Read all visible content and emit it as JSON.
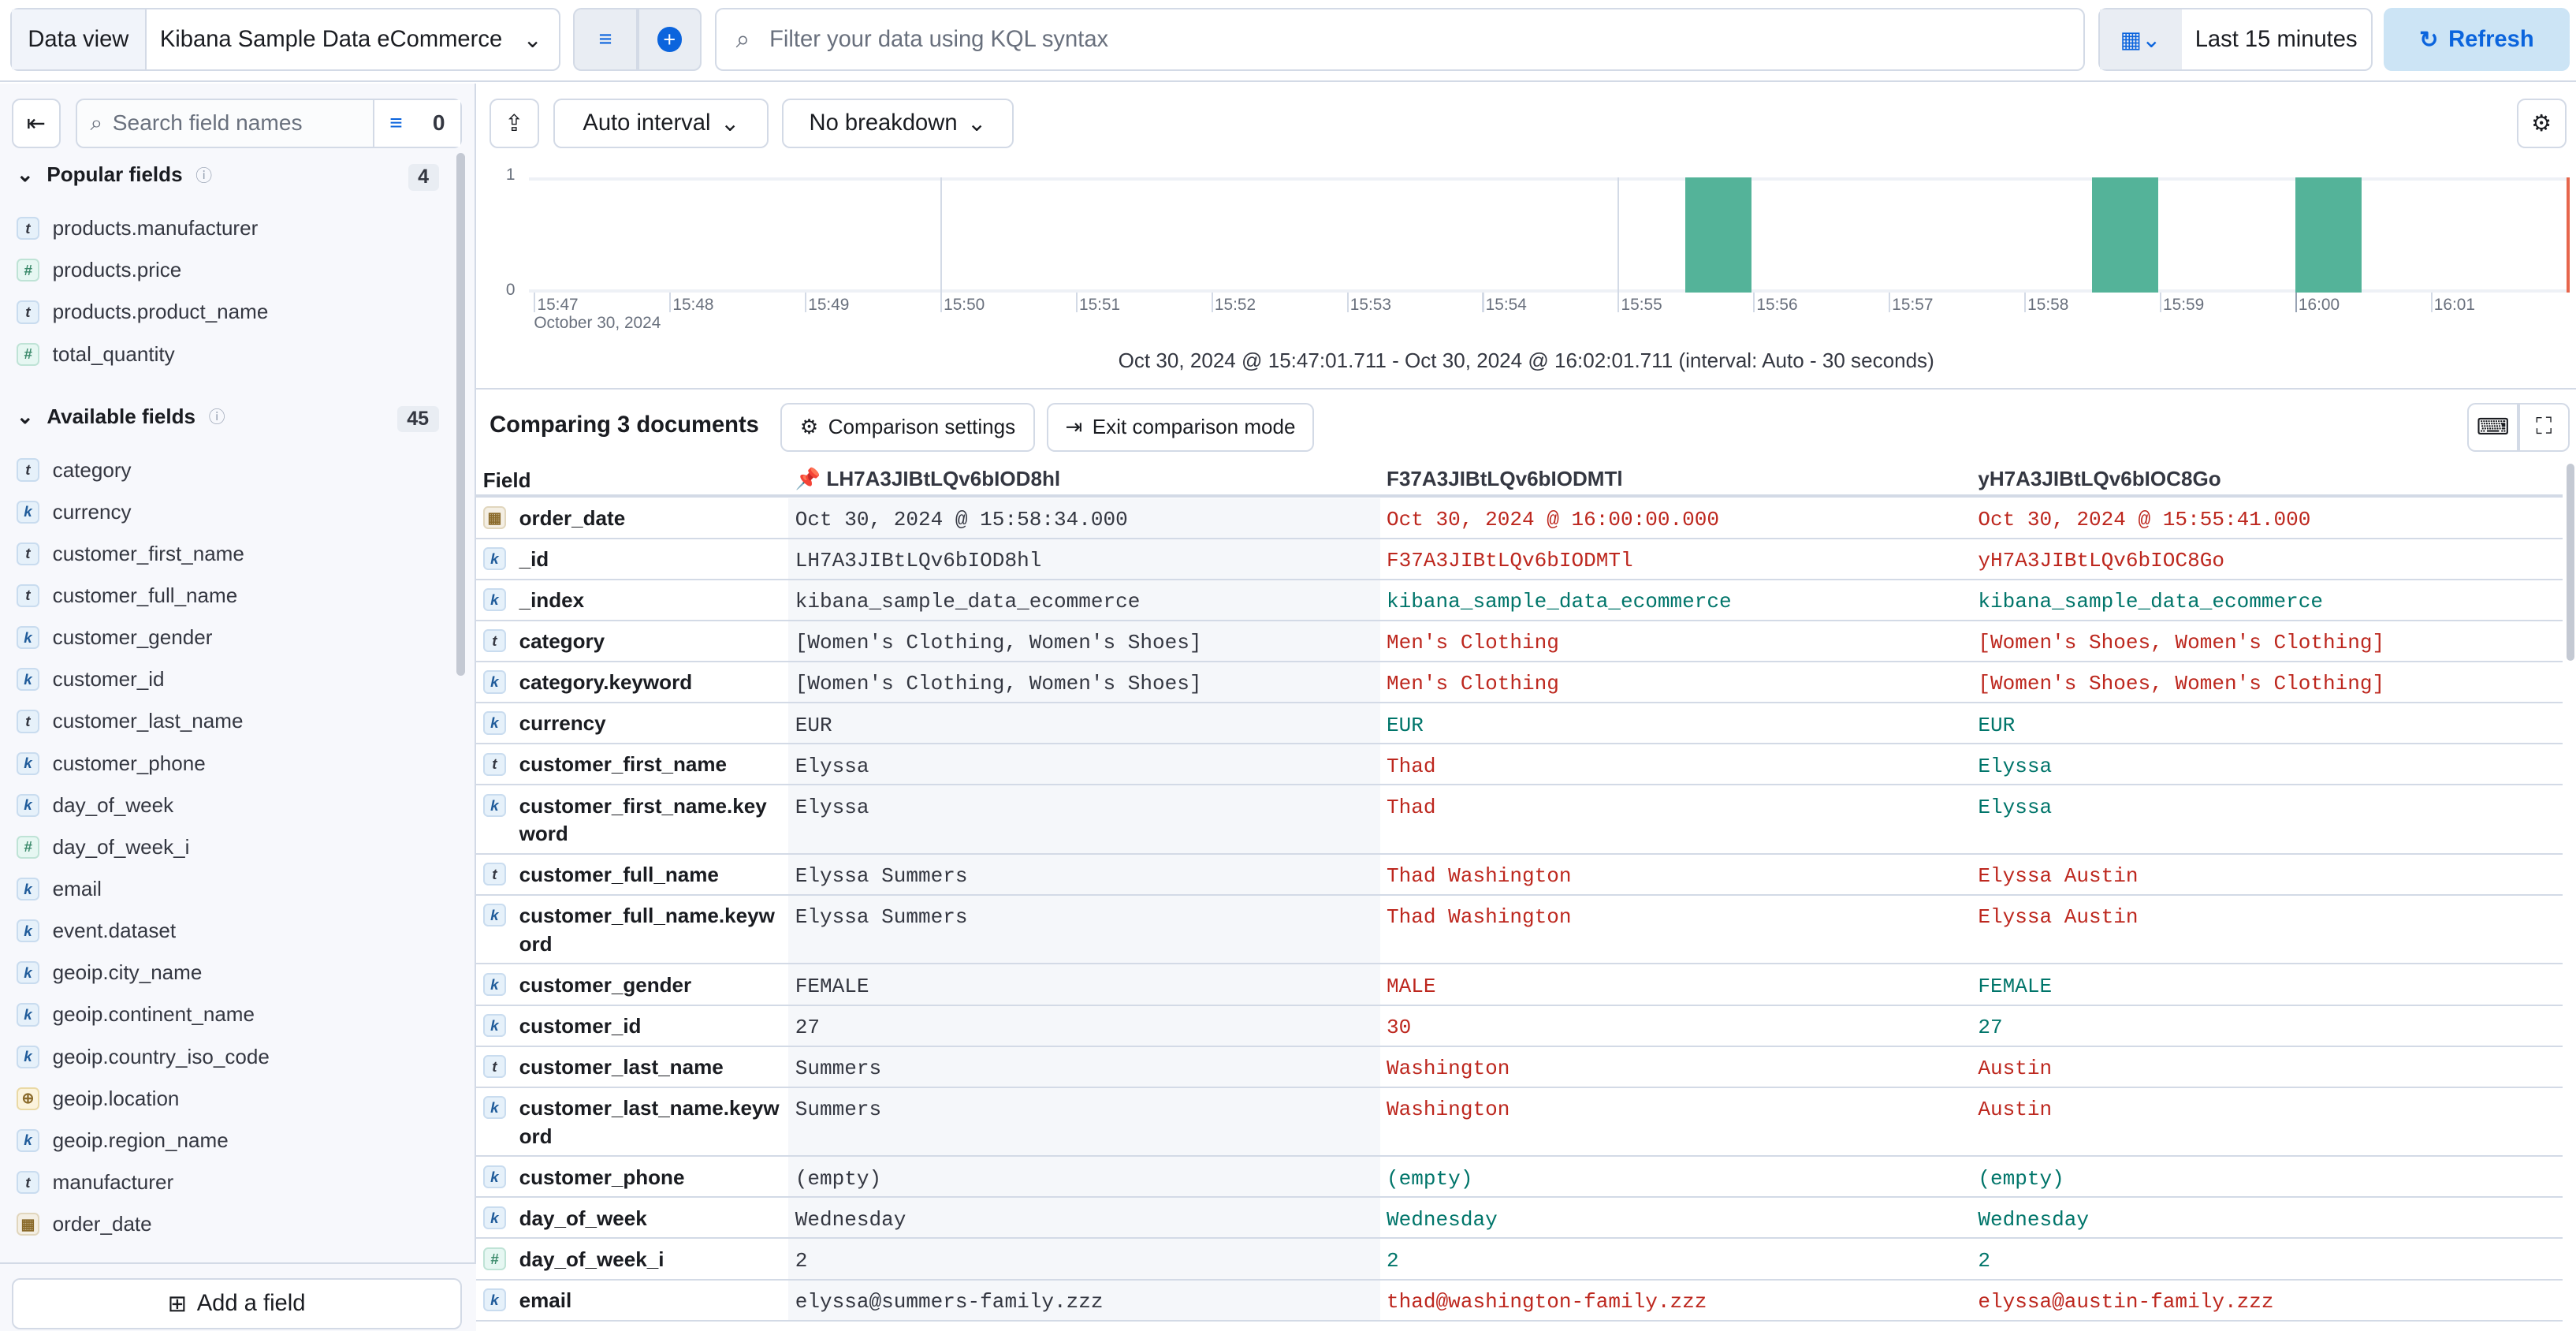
{
  "topbar": {
    "data_view_label": "Data view",
    "data_view_value": "Kibana Sample Data eCommerce",
    "search_placeholder": "Filter your data using KQL syntax",
    "time_range": "Last 15 minutes",
    "refresh_label": "Refresh"
  },
  "sidebar": {
    "search_placeholder": "Search field names",
    "filter_count": "0",
    "popular": {
      "title": "Popular fields",
      "count": "4",
      "items": [
        {
          "type": "t",
          "name": "products.manufacturer"
        },
        {
          "type": "#",
          "name": "products.price"
        },
        {
          "type": "t",
          "name": "products.product_name"
        },
        {
          "type": "#",
          "name": "total_quantity"
        }
      ]
    },
    "available": {
      "title": "Available fields",
      "count": "45",
      "items": [
        {
          "type": "t",
          "name": "category"
        },
        {
          "type": "k",
          "name": "currency"
        },
        {
          "type": "t",
          "name": "customer_first_name"
        },
        {
          "type": "t",
          "name": "customer_full_name"
        },
        {
          "type": "k",
          "name": "customer_gender"
        },
        {
          "type": "k",
          "name": "customer_id"
        },
        {
          "type": "t",
          "name": "customer_last_name"
        },
        {
          "type": "k",
          "name": "customer_phone"
        },
        {
          "type": "k",
          "name": "day_of_week"
        },
        {
          "type": "#",
          "name": "day_of_week_i"
        },
        {
          "type": "k",
          "name": "email"
        },
        {
          "type": "k",
          "name": "event.dataset"
        },
        {
          "type": "k",
          "name": "geoip.city_name"
        },
        {
          "type": "k",
          "name": "geoip.continent_name"
        },
        {
          "type": "k",
          "name": "geoip.country_iso_code"
        },
        {
          "type": "geo",
          "name": "geoip.location"
        },
        {
          "type": "k",
          "name": "geoip.region_name"
        },
        {
          "type": "t",
          "name": "manufacturer"
        },
        {
          "type": "date",
          "name": "order_date"
        }
      ]
    },
    "add_field_label": "Add a field"
  },
  "toolbar": {
    "interval": "Auto interval",
    "breakdown": "No breakdown"
  },
  "chart_data": {
    "type": "bar",
    "x_ticks": [
      "15:47",
      "15:48",
      "15:49",
      "15:50",
      "15:51",
      "15:52",
      "15:53",
      "15:54",
      "15:55",
      "15:56",
      "15:57",
      "15:58",
      "15:59",
      "16:00",
      "16:01"
    ],
    "x_sublabel": "October 30, 2024",
    "y_ticks": [
      "0",
      "1"
    ],
    "ylim": [
      0,
      1
    ],
    "interval": "30 seconds",
    "color": "#54b399",
    "buckets": [
      {
        "x": "15:55:30",
        "value": 1
      },
      {
        "x": "15:58:30",
        "value": 1
      },
      {
        "x": "16:00:00",
        "value": 1
      }
    ],
    "now_marker": "16:02:00",
    "footer": "Oct 30, 2024 @ 15:47:01.711 - Oct 30, 2024 @ 16:02:01.711 (interval: Auto - 30 seconds)"
  },
  "comparison": {
    "title": "Comparing 3 documents",
    "settings_label": "Comparison settings",
    "exit_label": "Exit comparison mode",
    "field_header": "Field",
    "docs": [
      "LH7A3JIBtLQv6bIOD8hl",
      "F37A3JIBtLQv6bIODMTl",
      "yH7A3JIBtLQv6bIOC8Go"
    ],
    "colors": {
      "equal": "#00756a",
      "different": "#bd271e"
    },
    "rows": [
      {
        "field": "order_date",
        "type": "date",
        "values": [
          "Oct 30, 2024 @ 15:58:34.000",
          "Oct 30, 2024 @ 16:00:00.000",
          "Oct 30, 2024 @ 15:55:41.000"
        ],
        "status": [
          "df",
          "df"
        ]
      },
      {
        "field": "_id",
        "type": "k",
        "values": [
          "LH7A3JIBtLQv6bIOD8hl",
          "F37A3JIBtLQv6bIODMTl",
          "yH7A3JIBtLQv6bIOC8Go"
        ],
        "status": [
          "df",
          "df"
        ]
      },
      {
        "field": "_index",
        "type": "k",
        "values": [
          "kibana_sample_data_ecommerce",
          "kibana_sample_data_ecommerce",
          "kibana_sample_data_ecommerce"
        ],
        "status": [
          "eq",
          "eq"
        ]
      },
      {
        "field": "category",
        "type": "t",
        "values": [
          "[Women's Clothing, Women's Shoes]",
          "Men's Clothing",
          "[Women's Shoes, Women's Clothing]"
        ],
        "status": [
          "df",
          "df"
        ]
      },
      {
        "field": "category.keyword",
        "type": "k",
        "values": [
          "[Women's Clothing, Women's Shoes]",
          "Men's Clothing",
          "[Women's Shoes, Women's Clothing]"
        ],
        "status": [
          "df",
          "df"
        ]
      },
      {
        "field": "currency",
        "type": "k",
        "values": [
          "EUR",
          "EUR",
          "EUR"
        ],
        "status": [
          "eq",
          "eq"
        ]
      },
      {
        "field": "customer_first_name",
        "type": "t",
        "values": [
          "Elyssa",
          "Thad",
          "Elyssa"
        ],
        "status": [
          "df",
          "eq"
        ]
      },
      {
        "field": "customer_first_name.keyword",
        "type": "k",
        "values": [
          "Elyssa",
          "Thad",
          "Elyssa"
        ],
        "status": [
          "df",
          "eq"
        ],
        "tall": true
      },
      {
        "field": "customer_full_name",
        "type": "t",
        "values": [
          "Elyssa Summers",
          "Thad Washington",
          "Elyssa Austin"
        ],
        "status": [
          "df",
          "df"
        ]
      },
      {
        "field": "customer_full_name.keyword",
        "type": "k",
        "values": [
          "Elyssa Summers",
          "Thad Washington",
          "Elyssa Austin"
        ],
        "status": [
          "df",
          "df"
        ],
        "tall": true
      },
      {
        "field": "customer_gender",
        "type": "k",
        "values": [
          "FEMALE",
          "MALE",
          "FEMALE"
        ],
        "status": [
          "df",
          "eq"
        ]
      },
      {
        "field": "customer_id",
        "type": "k",
        "values": [
          "27",
          "30",
          "27"
        ],
        "status": [
          "df",
          "eq"
        ]
      },
      {
        "field": "customer_last_name",
        "type": "t",
        "values": [
          "Summers",
          "Washington",
          "Austin"
        ],
        "status": [
          "df",
          "df"
        ]
      },
      {
        "field": "customer_last_name.keyword",
        "type": "k",
        "values": [
          "Summers",
          "Washington",
          "Austin"
        ],
        "status": [
          "df",
          "df"
        ],
        "tall": true
      },
      {
        "field": "customer_phone",
        "type": "k",
        "values": [
          "(empty)",
          "(empty)",
          "(empty)"
        ],
        "status": [
          "eq",
          "eq"
        ]
      },
      {
        "field": "day_of_week",
        "type": "k",
        "values": [
          "Wednesday",
          "Wednesday",
          "Wednesday"
        ],
        "status": [
          "eq",
          "eq"
        ]
      },
      {
        "field": "day_of_week_i",
        "type": "#",
        "values": [
          "2",
          "2",
          "2"
        ],
        "status": [
          "eq",
          "eq"
        ]
      },
      {
        "field": "email",
        "type": "k",
        "values": [
          "elyssa@summers-family.zzz",
          "thad@washington-family.zzz",
          "elyssa@austin-family.zzz"
        ],
        "status": [
          "df",
          "df"
        ]
      }
    ]
  }
}
